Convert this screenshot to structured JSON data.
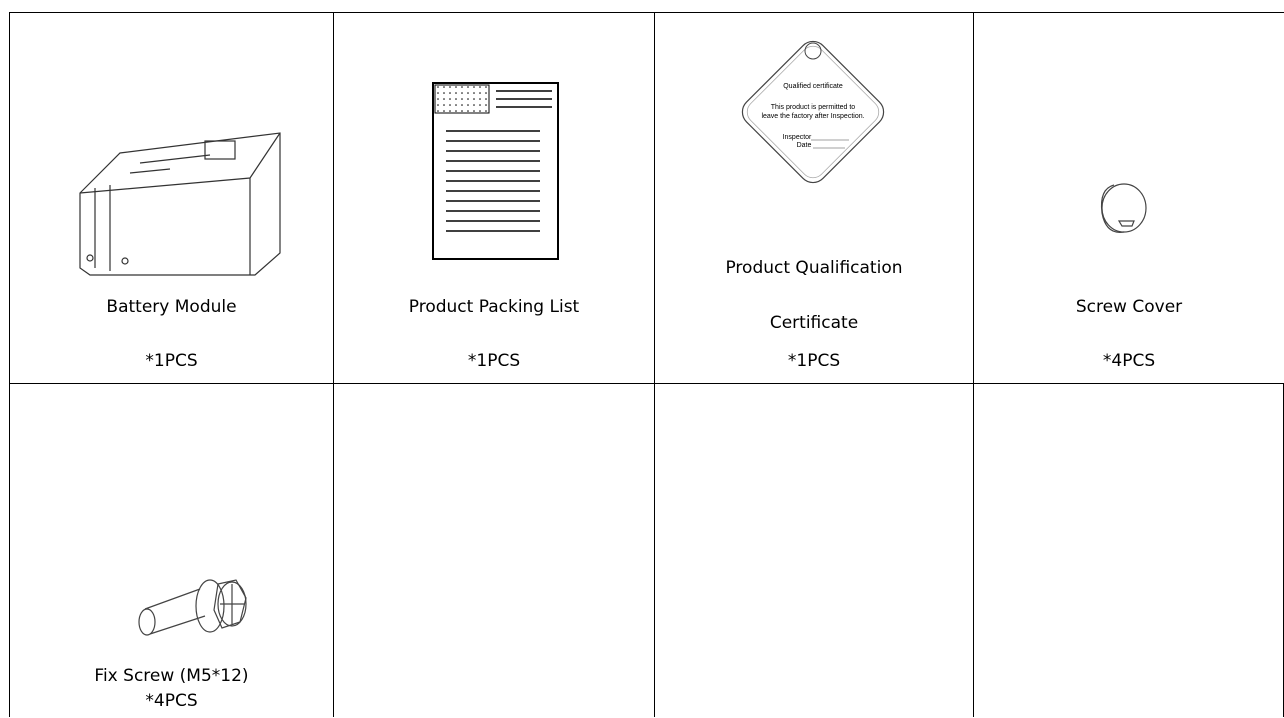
{
  "table": {
    "rows": [
      [
        {
          "name": "Battery Module",
          "qty": "*1PCS"
        },
        {
          "name": "Product Packing List",
          "qty": "*1PCS"
        },
        {
          "name": "Product Qualification Certificate",
          "qty": "*1PCS"
        },
        {
          "name": "Screw Cover",
          "qty": "*4PCS"
        }
      ],
      [
        {
          "name": "Fix Screw (M5*12)",
          "qty": "*4PCS"
        }
      ]
    ]
  },
  "certificate": {
    "title": "Qualified certificate",
    "lines": [
      "This product is permitted to",
      "leave the factory after Inspection."
    ],
    "inspector": "Inspector",
    "date": "Date"
  }
}
